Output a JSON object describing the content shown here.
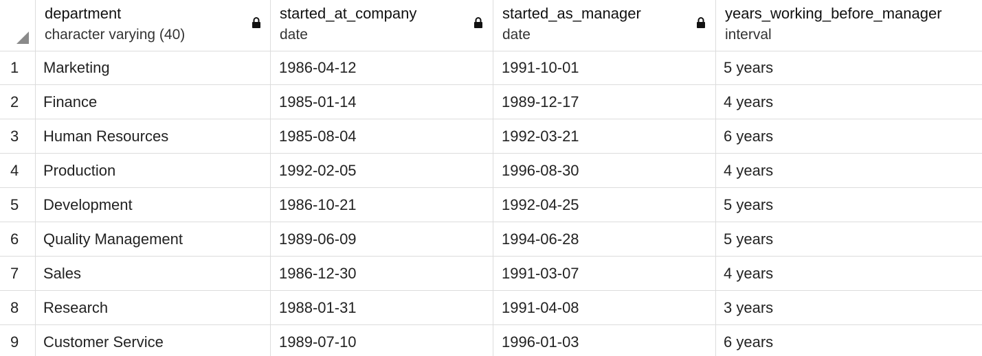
{
  "columns": [
    {
      "name": "department",
      "type": "character varying (40)",
      "locked": true
    },
    {
      "name": "started_at_company",
      "type": "date",
      "locked": true
    },
    {
      "name": "started_as_manager",
      "type": "date",
      "locked": true
    },
    {
      "name": "years_working_before_manager",
      "type": "interval",
      "locked": false
    }
  ],
  "rows": [
    {
      "num": "1",
      "department": "Marketing",
      "started_at_company": "1986-04-12",
      "started_as_manager": "1991-10-01",
      "years": "5 years"
    },
    {
      "num": "2",
      "department": "Finance",
      "started_at_company": "1985-01-14",
      "started_as_manager": "1989-12-17",
      "years": "4 years"
    },
    {
      "num": "3",
      "department": "Human Resources",
      "started_at_company": "1985-08-04",
      "started_as_manager": "1992-03-21",
      "years": "6 years"
    },
    {
      "num": "4",
      "department": "Production",
      "started_at_company": "1992-02-05",
      "started_as_manager": "1996-08-30",
      "years": "4 years"
    },
    {
      "num": "5",
      "department": "Development",
      "started_at_company": "1986-10-21",
      "started_as_manager": "1992-04-25",
      "years": "5 years"
    },
    {
      "num": "6",
      "department": "Quality Management",
      "started_at_company": "1989-06-09",
      "started_as_manager": "1994-06-28",
      "years": "5 years"
    },
    {
      "num": "7",
      "department": "Sales",
      "started_at_company": "1986-12-30",
      "started_as_manager": "1991-03-07",
      "years": "4 years"
    },
    {
      "num": "8",
      "department": "Research",
      "started_at_company": "1988-01-31",
      "started_as_manager": "1991-04-08",
      "years": "3 years"
    },
    {
      "num": "9",
      "department": "Customer Service",
      "started_at_company": "1989-07-10",
      "started_as_manager": "1996-01-03",
      "years": "6 years"
    }
  ],
  "icons": {
    "lock": "lock-icon",
    "corner": "select-all-corner"
  },
  "colors": {
    "grid_line": "#dcdcdc",
    "text": "#222222",
    "corner": "#8a8a8a"
  }
}
